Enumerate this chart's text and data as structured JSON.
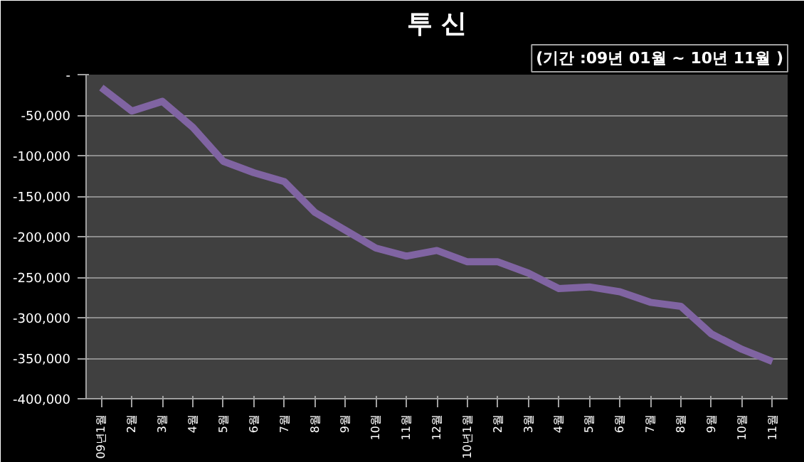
{
  "chart_data": {
    "type": "line",
    "title": "투 신",
    "subtitle": "(기간 :09년 01월 ~ 10년 11월 )",
    "categories": [
      "09년1월",
      "2월",
      "3월",
      "4월",
      "5월",
      "6월",
      "7월",
      "8월",
      "9월",
      "10월",
      "11월",
      "12월",
      "10년1월",
      "2월",
      "3월",
      "4월",
      "5월",
      "6월",
      "7월",
      "8월",
      "9월",
      "10월",
      "11월"
    ],
    "series": [
      {
        "color": "#8064a2",
        "values": [
          -16000,
          -45000,
          -33000,
          -65000,
          -107000,
          -121000,
          -132000,
          -170000,
          -192000,
          -214000,
          -224000,
          -217000,
          -231000,
          -231000,
          -245000,
          -264000,
          -262000,
          -268000,
          -281000,
          -286000,
          -320000,
          -339000,
          -354000
        ]
      }
    ],
    "ylim": [
      -400000,
      0
    ],
    "yticks": [
      {
        "value": 0,
        "label": "-"
      },
      {
        "value": -50000,
        "label": "-50,000"
      },
      {
        "value": -100000,
        "label": "-100,000"
      },
      {
        "value": -150000,
        "label": "-150,000"
      },
      {
        "value": -200000,
        "label": "-200,000"
      },
      {
        "value": -250000,
        "label": "-250,000"
      },
      {
        "value": -300000,
        "label": "-300,000"
      },
      {
        "value": -350000,
        "label": "-350,000"
      },
      {
        "value": -400000,
        "label": "-400,000"
      }
    ],
    "grid": "y",
    "marker": "none",
    "line_style": "solid"
  }
}
